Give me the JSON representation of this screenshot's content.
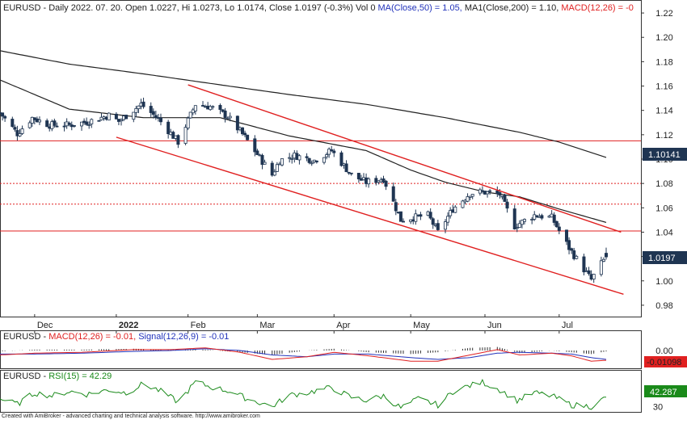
{
  "colors": {
    "background": "#ffffff",
    "frame": "#222222",
    "candle_up": "#ffffff",
    "candle_down": "#1f3552",
    "candle_edge": "#1f3552",
    "ma": "#222222",
    "channel": "#e02020",
    "hline": "#e02020",
    "macd": "#e02020",
    "signal": "#2233bb",
    "rsi": "#1a8a1a",
    "label_bg": "#1f3552",
    "rsi_label_bg": "#1a8a1a",
    "macd_label_bg": "#e02020"
  },
  "main": {
    "title_prefix": "EURUSD - Daily 2022. 07. 20. Open 1.0227, Hi 1.0273, Lo 1.0174, Close 1.0197 (-0.3%) Vol 0 ",
    "title_ma50": "MA(Close,50) = 1.05, ",
    "title_ma200": "MA1(Close,200) = 1.10, ",
    "title_macd": "MACD(12,26) = -0",
    "price_label": "1.0197",
    "ma200_label": "1.10141"
  },
  "macd_panel": {
    "title_prefix": "EURUSD - ",
    "macd_text": "MACD(12,26) = -0.01, ",
    "signal_text": "Signal(12,26,9) = -0.01",
    "value_label": "-0.01098"
  },
  "rsi_panel": {
    "title_prefix": "EURUSD - ",
    "rsi_text": "RSI(15) = 42.29",
    "value_label": "42.287"
  },
  "footer": {
    "credit": "Created with AmiBroker - advanced charting and technical analysis software. http://www.amibroker.com"
  },
  "chart_data": {
    "type": "candlestick",
    "symbol": "EURUSD",
    "timeframe": "Daily",
    "last_date": "2022-07-20",
    "ylim": [
      0.97,
      1.23
    ],
    "y_ticks": [
      "0.98",
      "1.00",
      "1.02",
      "1.04",
      "1.06",
      "1.08",
      "1.10",
      "1.12",
      "1.14",
      "1.16",
      "1.18",
      "1.20",
      "1.22"
    ],
    "x_labels": [
      {
        "label": "Dec",
        "date": "2021-12-01"
      },
      {
        "label": "2022",
        "date": "2022-01-03"
      },
      {
        "label": "Feb",
        "date": "2022-02-01"
      },
      {
        "label": "Mar",
        "date": "2022-03-01"
      },
      {
        "label": "Apr",
        "date": "2022-04-01"
      },
      {
        "label": "May",
        "date": "2022-05-02"
      },
      {
        "label": "Jun",
        "date": "2022-06-01"
      },
      {
        "label": "Jul",
        "date": "2022-07-01"
      }
    ],
    "close_anchors": [
      [
        "2021-11-17",
        1.138
      ],
      [
        "2021-11-24",
        1.121
      ],
      [
        "2021-11-30",
        1.134
      ],
      [
        "2021-12-07",
        1.128
      ],
      [
        "2021-12-15",
        1.128
      ],
      [
        "2021-12-23",
        1.131
      ],
      [
        "2021-12-31",
        1.136
      ],
      [
        "2022-01-04",
        1.131
      ],
      [
        "2022-01-13",
        1.145
      ],
      [
        "2022-01-20",
        1.133
      ],
      [
        "2022-01-28",
        1.114
      ],
      [
        "2022-02-04",
        1.145
      ],
      [
        "2022-02-10",
        1.143
      ],
      [
        "2022-02-17",
        1.135
      ],
      [
        "2022-02-24",
        1.118
      ],
      [
        "2022-03-07",
        1.087
      ],
      [
        "2022-03-10",
        1.099
      ],
      [
        "2022-03-16",
        1.103
      ],
      [
        "2022-03-24",
        1.099
      ],
      [
        "2022-03-31",
        1.107
      ],
      [
        "2022-04-08",
        1.087
      ],
      [
        "2022-04-14",
        1.081
      ],
      [
        "2022-04-21",
        1.084
      ],
      [
        "2022-04-28",
        1.05
      ],
      [
        "2022-05-03",
        1.052
      ],
      [
        "2022-05-09",
        1.054
      ],
      [
        "2022-05-13",
        1.04
      ],
      [
        "2022-05-19",
        1.059
      ],
      [
        "2022-05-26",
        1.072
      ],
      [
        "2022-05-31",
        1.073
      ],
      [
        "2022-06-07",
        1.071
      ],
      [
        "2022-06-13",
        1.045
      ],
      [
        "2022-06-21",
        1.054
      ],
      [
        "2022-06-28",
        1.052
      ],
      [
        "2022-07-05",
        1.027
      ],
      [
        "2022-07-08",
        1.018
      ],
      [
        "2022-07-14",
        1.001
      ],
      [
        "2022-07-18",
        1.014
      ],
      [
        "2022-07-20",
        1.0197
      ]
    ],
    "last_candle": {
      "date": "2022-07-20",
      "open": 1.0227,
      "high": 1.0273,
      "low": 1.0174,
      "close": 1.0197
    },
    "ma50_anchors": [
      [
        "2021-11-17",
        1.165
      ],
      [
        "2021-12-15",
        1.141
      ],
      [
        "2022-01-14",
        1.134
      ],
      [
        "2022-02-14",
        1.134
      ],
      [
        "2022-03-14",
        1.119
      ],
      [
        "2022-04-14",
        1.107
      ],
      [
        "2022-05-02",
        1.091
      ],
      [
        "2022-05-16",
        1.081
      ],
      [
        "2022-06-01",
        1.073
      ],
      [
        "2022-06-15",
        1.069
      ],
      [
        "2022-07-01",
        1.059
      ],
      [
        "2022-07-20",
        1.048
      ]
    ],
    "ma200_anchors": [
      [
        "2021-11-17",
        1.189
      ],
      [
        "2021-12-15",
        1.178
      ],
      [
        "2022-01-14",
        1.17
      ],
      [
        "2022-02-14",
        1.161
      ],
      [
        "2022-03-14",
        1.153
      ],
      [
        "2022-04-14",
        1.145
      ],
      [
        "2022-05-16",
        1.134
      ],
      [
        "2022-06-15",
        1.122
      ],
      [
        "2022-07-01",
        1.114
      ],
      [
        "2022-07-20",
        1.10141
      ]
    ],
    "channel_lines": [
      {
        "from": [
          "2022-02-01",
          1.161
        ],
        "to": [
          "2022-07-26",
          1.04
        ]
      },
      {
        "from": [
          "2022-01-03",
          1.118
        ],
        "to": [
          "2022-07-27",
          0.989
        ]
      }
    ],
    "horizontal_levels": [
      {
        "value": 1.115,
        "style": "solid"
      },
      {
        "value": 1.08,
        "style": "dotted"
      },
      {
        "value": 1.063,
        "style": "dotted"
      },
      {
        "value": 1.041,
        "style": "solid"
      }
    ],
    "macd": {
      "ylim": [
        -0.02,
        0.02
      ],
      "y_ticks": [
        "0.00"
      ],
      "last_macd": -0.01098,
      "last_signal": -0.01,
      "macd_anchors": [
        [
          "2021-11-17",
          -0.005
        ],
        [
          "2021-12-01",
          -0.003
        ],
        [
          "2021-12-20",
          -0.002
        ],
        [
          "2022-01-10",
          0.001
        ],
        [
          "2022-01-25",
          0.001
        ],
        [
          "2022-02-08",
          0.003
        ],
        [
          "2022-02-22",
          -0.002
        ],
        [
          "2022-03-07",
          -0.01
        ],
        [
          "2022-03-21",
          -0.007
        ],
        [
          "2022-04-01",
          -0.002
        ],
        [
          "2022-04-15",
          -0.006
        ],
        [
          "2022-05-02",
          -0.012
        ],
        [
          "2022-05-13",
          -0.012
        ],
        [
          "2022-05-26",
          -0.005
        ],
        [
          "2022-06-06",
          0.001
        ],
        [
          "2022-06-15",
          -0.005
        ],
        [
          "2022-06-28",
          -0.003
        ],
        [
          "2022-07-06",
          -0.006
        ],
        [
          "2022-07-14",
          -0.012
        ],
        [
          "2022-07-20",
          -0.01098
        ]
      ],
      "signal_anchors": [
        [
          "2021-11-17",
          -0.004
        ],
        [
          "2021-12-01",
          -0.004
        ],
        [
          "2021-12-20",
          -0.003
        ],
        [
          "2022-01-10",
          -0.001
        ],
        [
          "2022-01-25",
          0.0
        ],
        [
          "2022-02-08",
          0.002
        ],
        [
          "2022-02-22",
          0.0
        ],
        [
          "2022-03-07",
          -0.005
        ],
        [
          "2022-03-21",
          -0.007
        ],
        [
          "2022-04-01",
          -0.004
        ],
        [
          "2022-04-15",
          -0.004
        ],
        [
          "2022-05-02",
          -0.008
        ],
        [
          "2022-05-13",
          -0.01
        ],
        [
          "2022-05-26",
          -0.008
        ],
        [
          "2022-06-06",
          -0.003
        ],
        [
          "2022-06-15",
          -0.002
        ],
        [
          "2022-06-28",
          -0.003
        ],
        [
          "2022-07-06",
          -0.004
        ],
        [
          "2022-07-14",
          -0.008
        ],
        [
          "2022-07-20",
          -0.01
        ]
      ]
    },
    "rsi": {
      "ylim": [
        25,
        75
      ],
      "y_ticks": [
        "30"
      ],
      "last": 42.287,
      "anchors": [
        [
          "2021-11-17",
          40
        ],
        [
          "2021-11-24",
          33
        ],
        [
          "2021-12-01",
          48
        ],
        [
          "2021-12-08",
          44
        ],
        [
          "2021-12-15",
          50
        ],
        [
          "2021-12-22",
          46
        ],
        [
          "2021-12-31",
          52
        ],
        [
          "2022-01-07",
          48
        ],
        [
          "2022-01-14",
          60
        ],
        [
          "2022-01-21",
          50
        ],
        [
          "2022-01-28",
          36
        ],
        [
          "2022-02-04",
          62
        ],
        [
          "2022-02-11",
          55
        ],
        [
          "2022-02-18",
          50
        ],
        [
          "2022-02-25",
          40
        ],
        [
          "2022-03-07",
          30
        ],
        [
          "2022-03-14",
          45
        ],
        [
          "2022-03-21",
          48
        ],
        [
          "2022-03-31",
          55
        ],
        [
          "2022-04-08",
          42
        ],
        [
          "2022-04-14",
          38
        ],
        [
          "2022-04-21",
          44
        ],
        [
          "2022-04-28",
          28
        ],
        [
          "2022-05-05",
          40
        ],
        [
          "2022-05-13",
          32
        ],
        [
          "2022-05-20",
          52
        ],
        [
          "2022-05-31",
          62
        ],
        [
          "2022-06-07",
          52
        ],
        [
          "2022-06-14",
          38
        ],
        [
          "2022-06-21",
          48
        ],
        [
          "2022-06-28",
          44
        ],
        [
          "2022-07-06",
          32
        ],
        [
          "2022-07-14",
          30
        ],
        [
          "2022-07-18",
          38
        ],
        [
          "2022-07-20",
          42.287
        ]
      ]
    }
  }
}
